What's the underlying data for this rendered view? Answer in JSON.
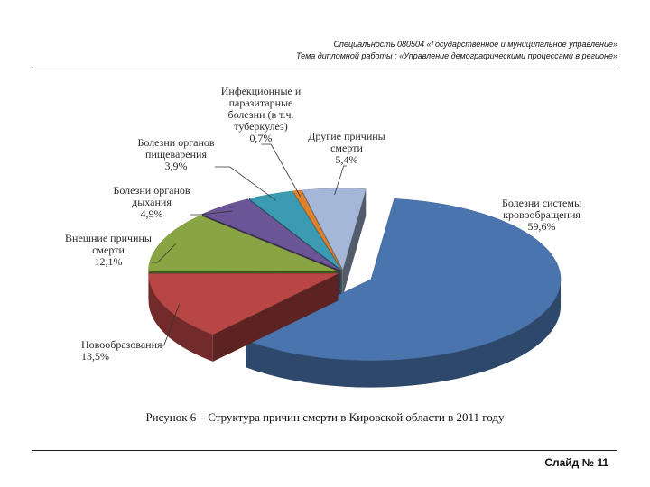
{
  "header": {
    "line1": "Специальность 080504 «Государственное и муниципальное управление»",
    "line2": "Тема дипломной работы : «Управление демографическими процессами в регионе»"
  },
  "caption": "Рисунок 6 – Структура причин смерти в Кировской области в 2011 году",
  "slide_label": "Слайд № 11",
  "chart_data": {
    "type": "pie",
    "title": "",
    "slices": [
      {
        "label": "Болезни системы кровообращения",
        "value": 59.6,
        "value_label": "59,6%",
        "color": "#4a74ad",
        "label_lines": [
          "Болезни системы",
          "кровообращения",
          "59,6%"
        ]
      },
      {
        "label": "Новообразования",
        "value": 13.5,
        "value_label": "13,5%",
        "color": "#b84644",
        "label_lines": [
          "Новообразования",
          "13,5%"
        ]
      },
      {
        "label": "Внешние причины смерти",
        "value": 12.1,
        "value_label": "12,1%",
        "color": "#88a443",
        "label_lines": [
          "Внешние причины",
          "смерти",
          "12,1%"
        ]
      },
      {
        "label": "Болезни органов дыхания",
        "value": 4.9,
        "value_label": "4,9%",
        "color": "#6b5596",
        "label_lines": [
          "Болезни органов",
          "дыхания",
          "4,9%"
        ]
      },
      {
        "label": "Болезни органов пищеварения",
        "value": 3.9,
        "value_label": "3,9%",
        "color": "#3b9bb2",
        "label_lines": [
          "Болезни органов",
          "пищеварения",
          "3,9%"
        ]
      },
      {
        "label": "Инфекционные и паразитарные болезни (в т.ч. туберкулез)",
        "value": 0.7,
        "value_label": "0,7%",
        "color": "#e0812d",
        "label_lines": [
          "Инфекционные и",
          "паразитарные",
          "болезни (в т.ч.",
          "туберкулез)",
          "0,7%"
        ]
      },
      {
        "label": "Другие причины смерти",
        "value": 5.4,
        "value_label": "5,4%",
        "color": "#a4b7d8",
        "label_lines": [
          "Другие причины",
          "смерти",
          "5,4%"
        ]
      }
    ]
  }
}
